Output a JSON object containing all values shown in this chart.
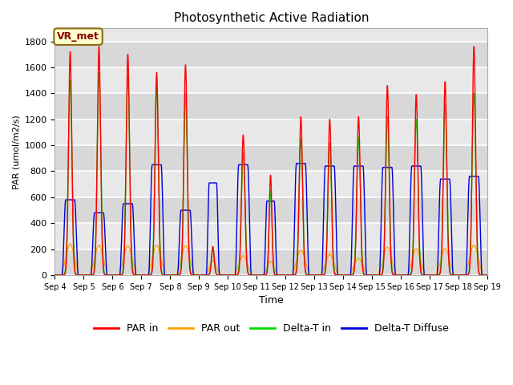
{
  "title": "Photosynthetic Active Radiation",
  "ylabel": "PAR (umol/m2/s)",
  "xlabel": "Time",
  "annotation": "VR_met",
  "ylim": [
    0,
    1900
  ],
  "yticks": [
    0,
    200,
    400,
    600,
    800,
    1000,
    1200,
    1400,
    1600,
    1800
  ],
  "xtick_labels": [
    "Sep 4",
    "Sep 5",
    "Sep 6",
    "Sep 7",
    "Sep 8",
    "Sep 9",
    "Sep 10",
    "Sep 11",
    "Sep 12",
    "Sep 13",
    "Sep 14",
    "Sep 15",
    "Sep 16",
    "Sep 17",
    "Sep 18",
    "Sep 19"
  ],
  "colors": {
    "par_in": "#ff0000",
    "par_out": "#ffa500",
    "delta_t_in": "#00dd00",
    "delta_t_diffuse": "#0000dd"
  },
  "legend_labels": [
    "PAR in",
    "PAR out",
    "Delta-T in",
    "Delta-T Diffuse"
  ],
  "axes_facecolor": "#e8e8e8",
  "grid_color": "#ffffff",
  "n_days": 15,
  "daily_peaks": {
    "par_in": [
      1720,
      1760,
      1700,
      1560,
      1620,
      220,
      1080,
      770,
      1220,
      1200,
      1220,
      1460,
      1390,
      1490,
      1760
    ],
    "par_out": [
      240,
      230,
      225,
      230,
      225,
      110,
      150,
      105,
      195,
      160,
      130,
      215,
      205,
      205,
      230
    ],
    "delta_t_in": [
      1500,
      1560,
      1540,
      1450,
      1400,
      200,
      940,
      650,
      1050,
      1020,
      1060,
      1220,
      1200,
      1310,
      1400
    ],
    "delta_t_diffuse": [
      580,
      480,
      550,
      850,
      500,
      710,
      850,
      570,
      860,
      840,
      840,
      830,
      840,
      740,
      760
    ]
  },
  "day_starts": [
    6.0,
    6.0,
    6.0,
    6.0,
    6.0,
    6.0,
    6.0,
    6.0,
    6.0,
    6.0,
    6.0,
    6.0,
    6.0,
    6.0,
    6.0
  ],
  "day_ends": [
    19.5,
    19.5,
    19.5,
    19.5,
    19.5,
    17.0,
    19.5,
    17.0,
    19.5,
    19.5,
    19.5,
    19.5,
    19.5,
    19.5,
    19.5
  ]
}
